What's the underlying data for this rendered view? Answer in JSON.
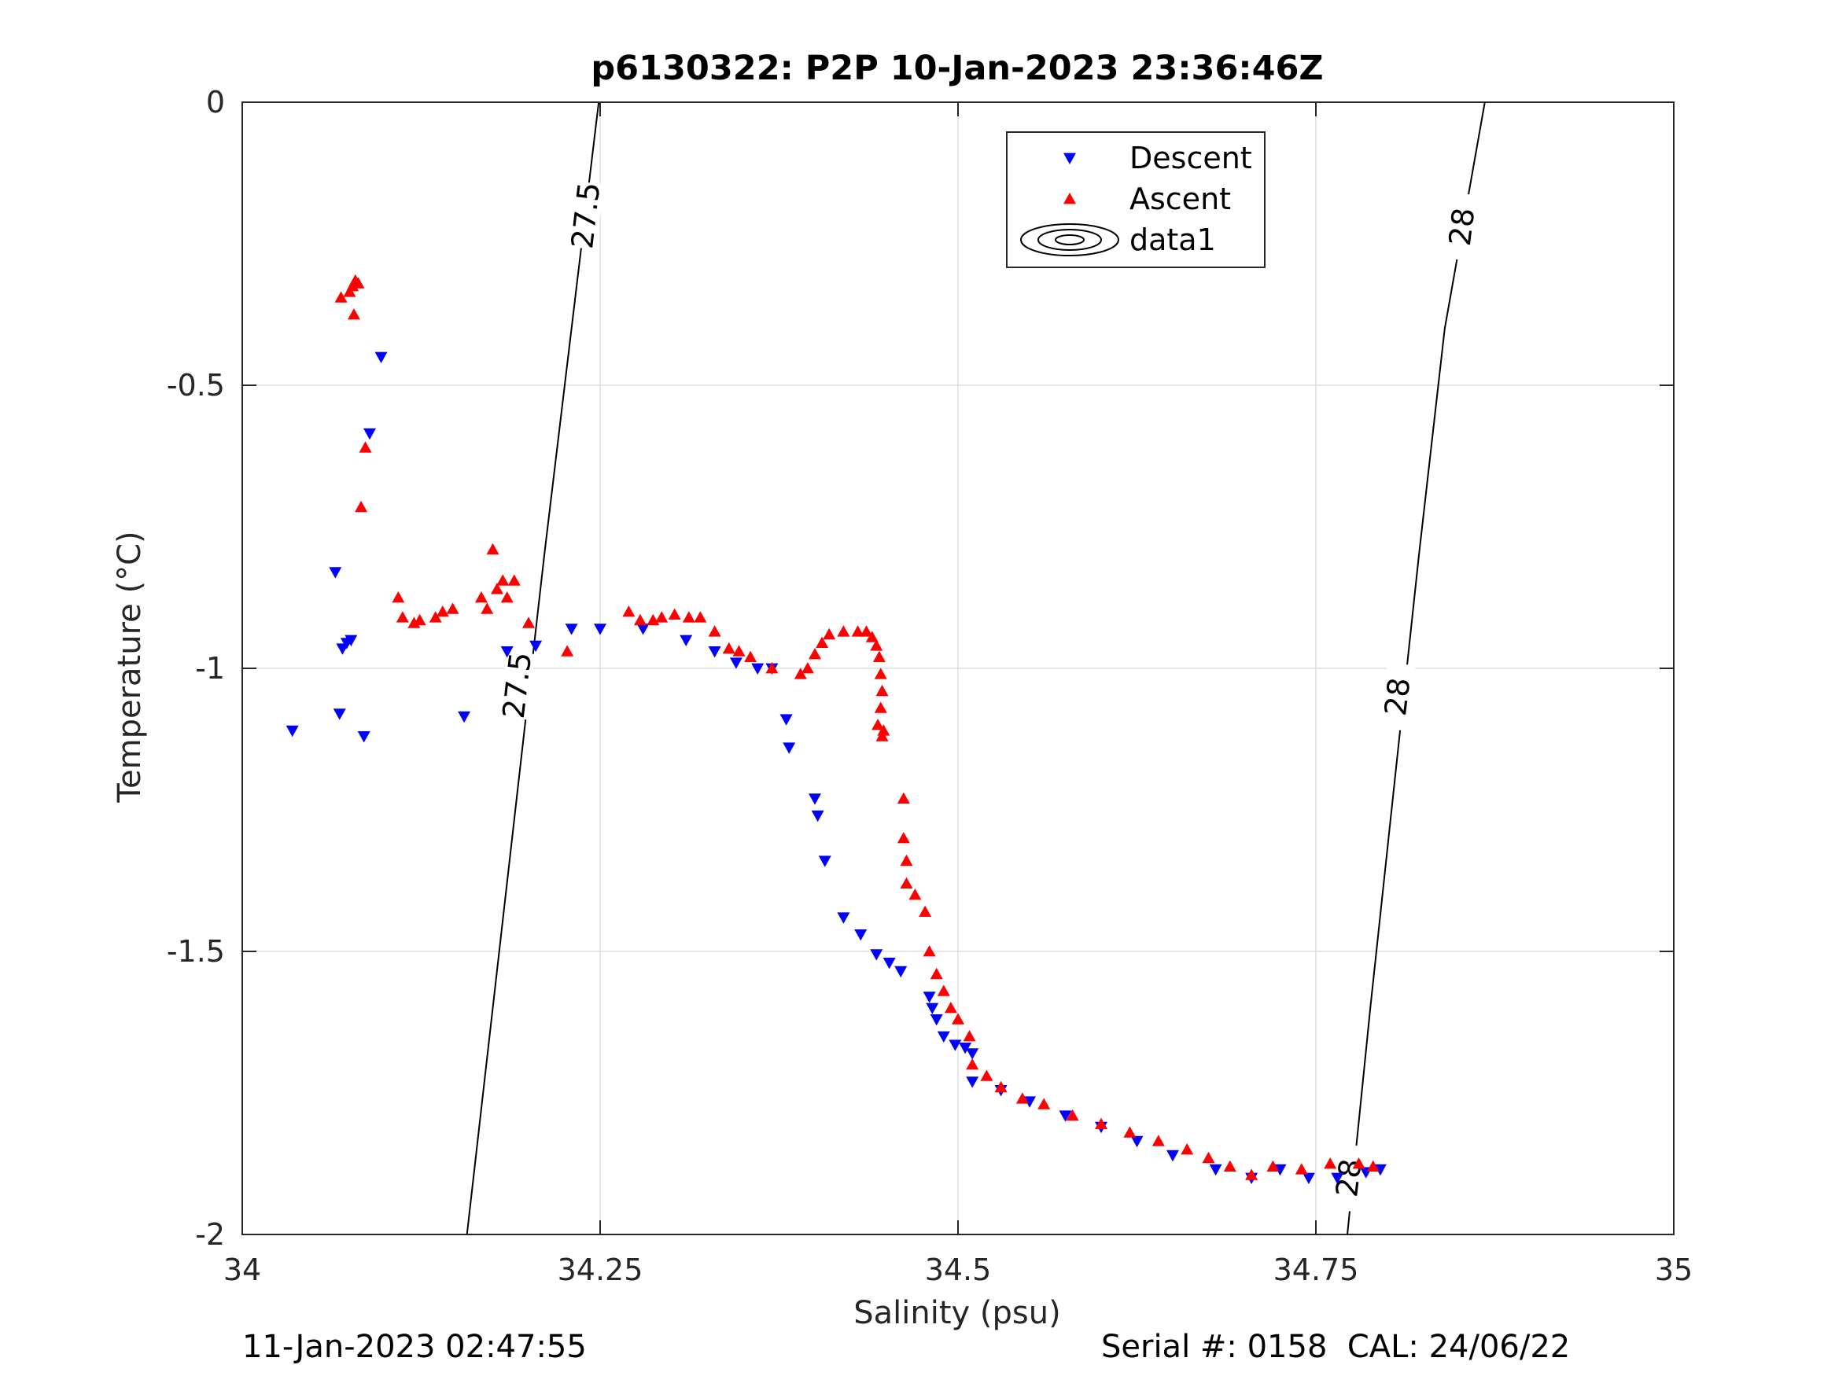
{
  "chart_data": {
    "type": "scatter",
    "title": "p6130322: P2P 10-Jan-2023 23:36:46Z",
    "xlabel": "Salinity (psu)",
    "ylabel": "Temperature (°C)",
    "xlim": [
      34,
      35
    ],
    "ylim": [
      -2,
      0
    ],
    "x_ticks": [
      34,
      34.25,
      34.5,
      34.75,
      35
    ],
    "x_tick_labels": [
      "34",
      "34.25",
      "34.5",
      "34.75",
      "35"
    ],
    "y_ticks": [
      0,
      -0.5,
      -1,
      -1.5,
      -2
    ],
    "y_tick_labels": [
      "0",
      "-0.5",
      "-1",
      "-1.5",
      "-2"
    ],
    "grid": true,
    "legend": {
      "placement": "top-center",
      "entries": [
        {
          "label": "Descent",
          "marker": "triangle-down",
          "color": "#0000ff"
        },
        {
          "label": "Ascent",
          "marker": "triangle-up",
          "color": "#ff0000"
        },
        {
          "label": "data1",
          "marker": "contour",
          "color": "#000000"
        }
      ]
    },
    "series": [
      {
        "name": "Descent",
        "color": "#0000ff",
        "marker": "triangle-down",
        "points": [
          [
            34.035,
            -1.11
          ],
          [
            34.065,
            -0.83
          ],
          [
            34.068,
            -1.08
          ],
          [
            34.07,
            -0.965
          ],
          [
            34.073,
            -0.955
          ],
          [
            34.076,
            -0.95
          ],
          [
            34.085,
            -1.12
          ],
          [
            34.089,
            -0.585
          ],
          [
            34.097,
            -0.45
          ],
          [
            34.155,
            -1.085
          ],
          [
            34.185,
            -0.97
          ],
          [
            34.205,
            -0.96
          ],
          [
            34.23,
            -0.93
          ],
          [
            34.25,
            -0.93
          ],
          [
            34.28,
            -0.93
          ],
          [
            34.31,
            -0.95
          ],
          [
            34.33,
            -0.97
          ],
          [
            34.345,
            -0.99
          ],
          [
            34.36,
            -1.0
          ],
          [
            34.37,
            -1.0
          ],
          [
            34.38,
            -1.09
          ],
          [
            34.382,
            -1.14
          ],
          [
            34.4,
            -1.23
          ],
          [
            34.402,
            -1.26
          ],
          [
            34.407,
            -1.34
          ],
          [
            34.42,
            -1.44
          ],
          [
            34.432,
            -1.47
          ],
          [
            34.443,
            -1.505
          ],
          [
            34.452,
            -1.52
          ],
          [
            34.46,
            -1.535
          ],
          [
            34.48,
            -1.58
          ],
          [
            34.482,
            -1.6
          ],
          [
            34.485,
            -1.62
          ],
          [
            34.49,
            -1.65
          ],
          [
            34.498,
            -1.665
          ],
          [
            34.505,
            -1.67
          ],
          [
            34.51,
            -1.68
          ],
          [
            34.51,
            -1.73
          ],
          [
            34.53,
            -1.745
          ],
          [
            34.55,
            -1.765
          ],
          [
            34.575,
            -1.79
          ],
          [
            34.6,
            -1.81
          ],
          [
            34.625,
            -1.835
          ],
          [
            34.65,
            -1.86
          ],
          [
            34.68,
            -1.885
          ],
          [
            34.705,
            -1.9
          ],
          [
            34.725,
            -1.885
          ],
          [
            34.745,
            -1.9
          ],
          [
            34.765,
            -1.9
          ],
          [
            34.785,
            -1.89
          ],
          [
            34.795,
            -1.885
          ]
        ]
      },
      {
        "name": "Ascent",
        "color": "#ff0000",
        "marker": "triangle-up",
        "points": [
          [
            34.069,
            -0.345
          ],
          [
            34.075,
            -0.335
          ],
          [
            34.077,
            -0.325
          ],
          [
            34.079,
            -0.315
          ],
          [
            34.081,
            -0.32
          ],
          [
            34.078,
            -0.375
          ],
          [
            34.086,
            -0.61
          ],
          [
            34.083,
            -0.715
          ],
          [
            34.109,
            -0.875
          ],
          [
            34.112,
            -0.91
          ],
          [
            34.12,
            -0.92
          ],
          [
            34.124,
            -0.915
          ],
          [
            34.135,
            -0.91
          ],
          [
            34.14,
            -0.9
          ],
          [
            34.147,
            -0.895
          ],
          [
            34.167,
            -0.875
          ],
          [
            34.171,
            -0.895
          ],
          [
            34.175,
            -0.79
          ],
          [
            34.178,
            -0.86
          ],
          [
            34.182,
            -0.845
          ],
          [
            34.185,
            -0.875
          ],
          [
            34.19,
            -0.845
          ],
          [
            34.2,
            -0.92
          ],
          [
            34.227,
            -0.97
          ],
          [
            34.27,
            -0.9
          ],
          [
            34.278,
            -0.915
          ],
          [
            34.287,
            -0.915
          ],
          [
            34.293,
            -0.91
          ],
          [
            34.302,
            -0.905
          ],
          [
            34.312,
            -0.91
          ],
          [
            34.32,
            -0.91
          ],
          [
            34.33,
            -0.935
          ],
          [
            34.34,
            -0.965
          ],
          [
            34.347,
            -0.97
          ],
          [
            34.355,
            -0.98
          ],
          [
            34.37,
            -1.0
          ],
          [
            34.39,
            -1.01
          ],
          [
            34.395,
            -1.0
          ],
          [
            34.4,
            -0.975
          ],
          [
            34.405,
            -0.955
          ],
          [
            34.41,
            -0.94
          ],
          [
            34.42,
            -0.935
          ],
          [
            34.43,
            -0.935
          ],
          [
            34.436,
            -0.935
          ],
          [
            34.44,
            -0.945
          ],
          [
            34.443,
            -0.96
          ],
          [
            34.445,
            -0.98
          ],
          [
            34.446,
            -1.01
          ],
          [
            34.447,
            -1.04
          ],
          [
            34.446,
            -1.07
          ],
          [
            34.444,
            -1.1
          ],
          [
            34.447,
            -1.12
          ],
          [
            34.448,
            -1.11
          ],
          [
            34.462,
            -1.23
          ],
          [
            34.462,
            -1.3
          ],
          [
            34.464,
            -1.34
          ],
          [
            34.464,
            -1.38
          ],
          [
            34.47,
            -1.4
          ],
          [
            34.477,
            -1.43
          ],
          [
            34.48,
            -1.5
          ],
          [
            34.485,
            -1.54
          ],
          [
            34.49,
            -1.57
          ],
          [
            34.495,
            -1.6
          ],
          [
            34.5,
            -1.62
          ],
          [
            34.508,
            -1.65
          ],
          [
            34.51,
            -1.7
          ],
          [
            34.52,
            -1.72
          ],
          [
            34.53,
            -1.74
          ],
          [
            34.545,
            -1.76
          ],
          [
            34.56,
            -1.77
          ],
          [
            34.58,
            -1.79
          ],
          [
            34.6,
            -1.805
          ],
          [
            34.62,
            -1.82
          ],
          [
            34.64,
            -1.835
          ],
          [
            34.66,
            -1.85
          ],
          [
            34.675,
            -1.865
          ],
          [
            34.69,
            -1.88
          ],
          [
            34.705,
            -1.895
          ],
          [
            34.72,
            -1.88
          ],
          [
            34.74,
            -1.885
          ],
          [
            34.76,
            -1.875
          ],
          [
            34.78,
            -1.875
          ],
          [
            34.79,
            -1.88
          ]
        ]
      }
    ],
    "contours": [
      {
        "label": "27.5",
        "points": [
          [
            34.157,
            -2.0
          ],
          [
            34.175,
            -1.6
          ],
          [
            34.193,
            -1.2
          ],
          [
            34.211,
            -0.8
          ],
          [
            34.23,
            -0.4
          ],
          [
            34.249,
            0.0
          ]
        ],
        "label_positions": [
          [
            34.24,
            -0.2
          ],
          [
            34.192,
            -1.03
          ]
        ]
      },
      {
        "label": "28",
        "points": [
          [
            34.772,
            -2.0
          ],
          [
            34.788,
            -1.6
          ],
          [
            34.805,
            -1.2
          ],
          [
            34.822,
            -0.8
          ],
          [
            34.84,
            -0.4
          ],
          [
            34.868,
            0.0
          ]
        ],
        "label_positions": [
          [
            34.852,
            -0.22
          ],
          [
            34.807,
            -1.05
          ],
          [
            34.773,
            -1.9
          ]
        ]
      }
    ]
  },
  "footer": {
    "left": "11-Jan-2023 02:47:55",
    "right": "Serial #: 0158  CAL: 24/06/22"
  }
}
